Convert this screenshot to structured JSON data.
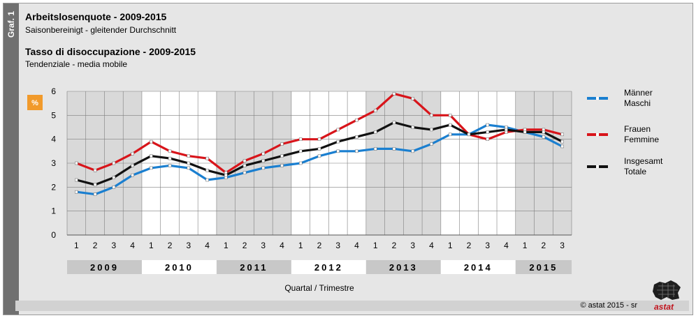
{
  "side_label": "Graf. 1",
  "header": {
    "title_de": "Arbeitslosenquote - 2009-2015",
    "subtitle_de": "Saisonbereinigt - gleitender Durchschnitt",
    "title_it": "Tasso di disoccupazione - 2009-2015",
    "subtitle_it": "Tendenziale - media mobile"
  },
  "footer": {
    "copyright": "©  astat 2015 - sr",
    "logo_text": "astat"
  },
  "chart_data": {
    "type": "line",
    "unit_badge": "%",
    "xlabel": "Quartal / Trimestre",
    "ylim": [
      0,
      6
    ],
    "y_ticks": [
      "0",
      "1",
      "2",
      "3",
      "4",
      "5",
      "6"
    ],
    "categories": [
      "1",
      "2",
      "3",
      "4",
      "1",
      "2",
      "3",
      "4",
      "1",
      "2",
      "3",
      "4",
      "1",
      "2",
      "3",
      "4",
      "1",
      "2",
      "3",
      "4",
      "1",
      "2",
      "3",
      "4",
      "1",
      "2",
      "3"
    ],
    "years": [
      {
        "label": "2009",
        "quarters": 4
      },
      {
        "label": "2010",
        "quarters": 4
      },
      {
        "label": "2011",
        "quarters": 4
      },
      {
        "label": "2012",
        "quarters": 4
      },
      {
        "label": "2013",
        "quarters": 4
      },
      {
        "label": "2014",
        "quarters": 4
      },
      {
        "label": "2015",
        "quarters": 3
      }
    ],
    "series": [
      {
        "name": "Männer",
        "name2": "Maschi",
        "color": "#1a7fd0",
        "values": [
          1.8,
          1.7,
          2.0,
          2.5,
          2.8,
          2.9,
          2.8,
          2.3,
          2.4,
          2.6,
          2.8,
          2.9,
          3.0,
          3.3,
          3.5,
          3.5,
          3.6,
          3.6,
          3.5,
          3.8,
          4.2,
          4.2,
          4.6,
          4.5,
          4.3,
          4.1,
          3.7
        ]
      },
      {
        "name": "Frauen",
        "name2": "Femmine",
        "color": "#d8141a",
        "values": [
          3.0,
          2.7,
          3.0,
          3.4,
          3.9,
          3.5,
          3.3,
          3.2,
          2.6,
          3.1,
          3.4,
          3.8,
          4.0,
          4.0,
          4.4,
          4.8,
          5.2,
          5.9,
          5.7,
          5.0,
          5.0,
          4.2,
          4.0,
          4.3,
          4.4,
          4.4,
          4.2
        ]
      },
      {
        "name": "Insgesamt",
        "name2": "Totale",
        "color": "#111111",
        "values": [
          2.3,
          2.1,
          2.4,
          2.9,
          3.3,
          3.2,
          3.0,
          2.7,
          2.5,
          2.9,
          3.1,
          3.3,
          3.5,
          3.6,
          3.9,
          4.1,
          4.3,
          4.7,
          4.5,
          4.4,
          4.6,
          4.2,
          4.3,
          4.4,
          4.3,
          4.3,
          3.9
        ]
      }
    ],
    "grid": true,
    "legend_position": "right"
  }
}
